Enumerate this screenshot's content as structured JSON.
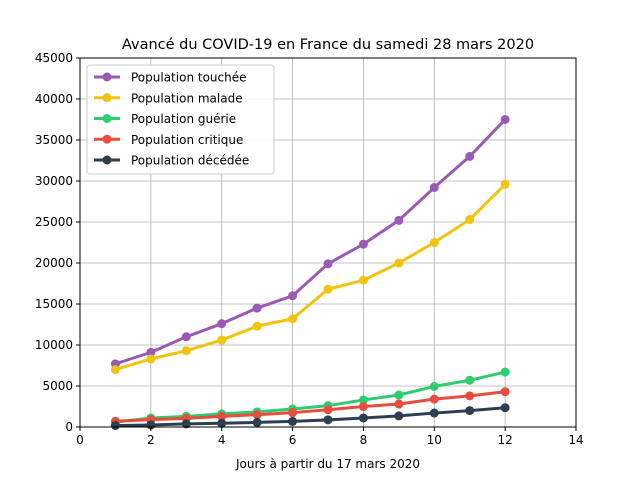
{
  "chart_data": {
    "type": "line",
    "title": "Avancé du COVID-19 en France du samedi 28 mars 2020",
    "xlabel": "Jours à partir du 17 mars 2020",
    "ylabel": "",
    "xlim": [
      0,
      14
    ],
    "ylim": [
      0,
      45000
    ],
    "xticks": [
      0,
      2,
      4,
      6,
      8,
      10,
      12,
      14
    ],
    "yticks": [
      0,
      5000,
      10000,
      15000,
      20000,
      25000,
      30000,
      35000,
      40000,
      45000
    ],
    "grid": true,
    "legend_position": "top-left",
    "x": [
      1,
      2,
      3,
      4,
      5,
      6,
      7,
      8,
      9,
      10,
      11,
      12
    ],
    "series": [
      {
        "name": "Population touchée",
        "color": "#9b59b6",
        "values": [
          7700,
          9100,
          11000,
          12600,
          14500,
          16000,
          19900,
          22300,
          25200,
          29200,
          33000,
          37500
        ]
      },
      {
        "name": "Population malade",
        "color": "#f1c40f",
        "values": [
          7000,
          8300,
          9300,
          10600,
          12300,
          13200,
          16800,
          17900,
          20000,
          22500,
          25300,
          29600
        ]
      },
      {
        "name": "Population guérie",
        "color": "#2ecc71",
        "values": [
          600,
          1100,
          1300,
          1600,
          1850,
          2200,
          2600,
          3300,
          3900,
          4950,
          5700,
          6700
        ]
      },
      {
        "name": "Population critique",
        "color": "#e74c3c",
        "values": [
          700,
          900,
          1050,
          1300,
          1500,
          1750,
          2100,
          2500,
          2800,
          3400,
          3800,
          4300
        ]
      },
      {
        "name": "Population décédée",
        "color": "#2c3e50",
        "values": [
          180,
          250,
          380,
          450,
          560,
          680,
          870,
          1100,
          1350,
          1700,
          2000,
          2350
        ]
      }
    ]
  }
}
